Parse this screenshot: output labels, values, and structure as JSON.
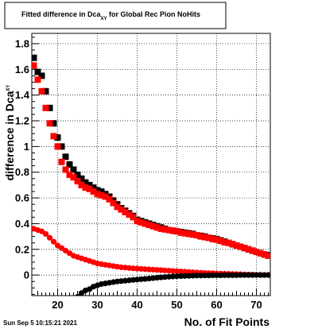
{
  "title": {
    "prefix": "Fitted difference in Dca",
    "subscript": "XY",
    "suffix": " for Global Rec Pion NoHits"
  },
  "ylabel": {
    "main": "difference in Dca",
    "subscript": "XY"
  },
  "xlabel": "No. of Fit Points",
  "timestamp": "Sun Sep  5 10:15:21 2021",
  "colors": {
    "series_black": "#000000",
    "series_red": "#ff0000",
    "grid": "#000000",
    "background": "#ffffff"
  },
  "chart_data": {
    "type": "scatter",
    "xlim": [
      13.5,
      73.5
    ],
    "ylim": [
      -0.16,
      1.88
    ],
    "xticks": [
      20,
      30,
      40,
      50,
      60,
      70
    ],
    "xtick_labels": [
      "20",
      "30",
      "40",
      "50",
      "60",
      "70"
    ],
    "yticks": [
      0,
      0.2,
      0.4,
      0.6,
      0.8,
      1,
      1.2,
      1.4,
      1.6,
      1.8
    ],
    "ytick_labels": [
      "0",
      "0.2",
      "0.4",
      "0.6",
      "0.8",
      "1",
      "1.2",
      "1.4",
      "1.6",
      "1.8"
    ],
    "grid": true,
    "legend": "none",
    "series": [
      {
        "color": "black",
        "marker": "square",
        "x": [
          14,
          15,
          16,
          17,
          18,
          19,
          20,
          21,
          22,
          23,
          24,
          25,
          26,
          27,
          28,
          29,
          30,
          31,
          32,
          33,
          34,
          35,
          36,
          37,
          38,
          39,
          40,
          41,
          42,
          43,
          44,
          45,
          46,
          47,
          48,
          49,
          50,
          51,
          52,
          53,
          54,
          55,
          56,
          57,
          58,
          59,
          60,
          61,
          62,
          63,
          64,
          65,
          66,
          67,
          68,
          69,
          70,
          71,
          72,
          73
        ],
        "y": [
          1.69,
          1.58,
          1.55,
          1.43,
          1.3,
          1.18,
          1.07,
          1.0,
          0.92,
          0.86,
          0.82,
          0.78,
          0.75,
          0.72,
          0.7,
          0.68,
          0.66,
          0.65,
          0.63,
          0.61,
          0.58,
          0.55,
          0.52,
          0.5,
          0.48,
          0.46,
          0.43,
          0.42,
          0.41,
          0.4,
          0.39,
          0.38,
          0.37,
          0.36,
          0.35,
          0.345,
          0.34,
          0.335,
          0.33,
          0.325,
          0.32,
          0.31,
          0.305,
          0.3,
          0.29,
          0.285,
          0.28,
          0.27,
          0.26,
          0.25,
          0.24,
          0.23,
          0.22,
          0.21,
          0.2,
          0.19,
          0.18,
          0.17,
          0.16,
          0.155
        ]
      },
      {
        "color": "red",
        "marker": "square",
        "x": [
          14,
          15,
          16,
          17,
          18,
          19,
          20,
          21,
          22,
          23,
          24,
          25,
          26,
          27,
          28,
          29,
          30,
          31,
          32,
          33,
          34,
          35,
          36,
          37,
          38,
          39,
          40,
          41,
          42,
          43,
          44,
          45,
          46,
          47,
          48,
          49,
          50,
          51,
          52,
          53,
          54,
          55,
          56,
          57,
          58,
          59,
          60,
          61,
          62,
          63,
          64,
          65,
          66,
          67,
          68,
          69,
          70,
          71,
          72,
          73
        ],
        "y": [
          1.63,
          1.52,
          1.43,
          1.3,
          1.18,
          1.08,
          1.0,
          0.88,
          0.82,
          0.78,
          0.76,
          0.73,
          0.7,
          0.68,
          0.67,
          0.65,
          0.63,
          0.62,
          0.61,
          0.59,
          0.56,
          0.53,
          0.51,
          0.49,
          0.47,
          0.45,
          0.42,
          0.41,
          0.4,
          0.39,
          0.38,
          0.37,
          0.36,
          0.355,
          0.35,
          0.345,
          0.34,
          0.33,
          0.325,
          0.32,
          0.315,
          0.31,
          0.3,
          0.295,
          0.29,
          0.28,
          0.275,
          0.265,
          0.255,
          0.25,
          0.24,
          0.23,
          0.22,
          0.21,
          0.2,
          0.19,
          0.18,
          0.17,
          0.16,
          0.15
        ]
      },
      {
        "color": "red",
        "marker": "circle",
        "x": [
          14,
          15,
          16,
          17,
          18,
          19,
          20,
          21,
          22,
          23,
          24,
          25,
          26,
          27,
          28,
          29,
          30,
          31,
          32,
          33,
          34,
          35,
          36,
          37,
          38,
          39,
          40,
          41,
          42,
          43,
          44,
          45,
          46,
          47,
          48,
          49,
          50,
          51,
          52,
          53,
          54,
          55,
          56,
          57,
          58,
          59,
          60,
          61,
          62,
          63,
          64,
          65,
          66,
          67,
          68,
          69,
          70,
          71,
          72,
          73
        ],
        "y": [
          0.36,
          0.35,
          0.34,
          0.32,
          0.29,
          0.26,
          0.23,
          0.21,
          0.19,
          0.17,
          0.15,
          0.14,
          0.13,
          0.12,
          0.11,
          0.1,
          0.09,
          0.085,
          0.08,
          0.075,
          0.07,
          0.065,
          0.06,
          0.058,
          0.055,
          0.052,
          0.05,
          0.048,
          0.046,
          0.044,
          0.042,
          0.04,
          0.038,
          0.036,
          0.034,
          0.032,
          0.03,
          0.028,
          0.026,
          0.024,
          0.022,
          0.02,
          0.018,
          0.016,
          0.015,
          0.014,
          0.012,
          0.011,
          0.01,
          0.009,
          0.008,
          0.007,
          0.006,
          0.005,
          0.004,
          0.003,
          0.002,
          0.002,
          0.001,
          0.001
        ]
      },
      {
        "color": "black",
        "marker": "circle",
        "x": [
          25,
          26,
          27,
          28,
          29,
          30,
          31,
          32,
          33,
          34,
          35,
          36,
          37,
          38,
          39,
          40,
          41,
          42,
          43,
          44,
          45,
          46,
          47,
          48,
          49,
          50,
          51,
          52,
          53,
          54,
          55,
          56,
          57,
          58,
          59,
          60,
          61,
          62,
          63,
          64,
          65,
          66,
          67,
          68,
          69,
          70,
          71,
          72,
          73
        ],
        "y": [
          -0.17,
          -0.14,
          -0.12,
          -0.11,
          -0.09,
          -0.08,
          -0.07,
          -0.065,
          -0.06,
          -0.055,
          -0.05,
          -0.047,
          -0.044,
          -0.041,
          -0.038,
          -0.035,
          -0.032,
          -0.03,
          -0.027,
          -0.024,
          -0.021,
          -0.018,
          -0.015,
          -0.013,
          -0.011,
          -0.009,
          -0.008,
          -0.007,
          -0.006,
          -0.005,
          -0.004,
          -0.004,
          -0.003,
          -0.003,
          -0.002,
          -0.002,
          -0.002,
          -0.001,
          -0.001,
          -0.001,
          -0.001,
          0,
          0,
          0,
          0,
          0,
          0,
          0,
          0
        ]
      }
    ]
  }
}
